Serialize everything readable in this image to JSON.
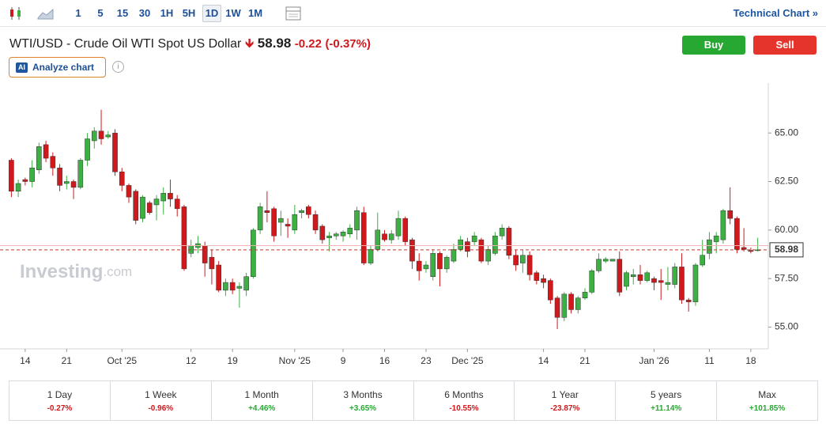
{
  "toolbar": {
    "intervals": [
      "1",
      "5",
      "15",
      "30",
      "1H",
      "5H",
      "1D",
      "1W",
      "1M"
    ],
    "link": "Technical Chart"
  },
  "header": {
    "title": "WTI/USD - Crude Oil WTI Spot US Dollar",
    "price": "58.98",
    "change": "-0.22",
    "change_pct": "(-0.37%)",
    "buy": "Buy",
    "sell": "Sell",
    "ai_badge": "AI",
    "analyze": "Analyze chart"
  },
  "chart_data": {
    "type": "candlestick",
    "watermark": {
      "brand": "Investing",
      "suffix": ".com"
    },
    "categories": [
      null,
      null,
      "14",
      null,
      null,
      null,
      null,
      null,
      "21",
      null,
      null,
      null,
      null,
      null,
      null,
      null,
      "Oct '25",
      null,
      null,
      null,
      null,
      null,
      null,
      null,
      null,
      null,
      "12",
      null,
      null,
      null,
      null,
      null,
      "19",
      null,
      null,
      null,
      null,
      null,
      null,
      null,
      null,
      "Nov '25",
      null,
      null,
      null,
      null,
      null,
      null,
      "9",
      null,
      null,
      null,
      null,
      null,
      "16",
      null,
      null,
      null,
      null,
      null,
      "23",
      null,
      null,
      null,
      null,
      null,
      "Dec '25",
      null,
      null,
      null,
      null,
      null,
      null,
      null,
      null,
      null,
      null,
      "14",
      null,
      null,
      null,
      null,
      null,
      "21",
      null,
      null,
      null,
      null,
      null,
      null,
      null,
      null,
      null,
      "Jan '26",
      null,
      null,
      null,
      null,
      null,
      null,
      null,
      "11",
      null,
      null,
      null,
      null,
      null,
      "18",
      null
    ],
    "open": [
      63.6,
      62.0,
      62.6,
      62.5,
      63.1,
      64.4,
      63.8,
      63.2,
      62.4,
      62.5,
      62.2,
      63.6,
      64.6,
      65.1,
      64.8,
      65.0,
      63.0,
      62.3,
      62.0,
      60.6,
      61.4,
      61.3,
      61.5,
      61.9,
      61.6,
      61.2,
      58.8,
      59.1,
      59.2,
      58.6,
      58.2,
      56.9,
      57.3,
      57.0,
      56.9,
      57.6,
      60.0,
      61.0,
      61.1,
      60.4,
      60.3,
      60.0,
      60.9,
      61.2,
      60.8,
      60.2,
      59.6,
      59.7,
      59.7,
      59.8,
      60.0,
      60.9,
      58.3,
      59.0,
      59.8,
      59.5,
      59.7,
      60.6,
      59.5,
      58.4,
      58.0,
      57.6,
      58.8,
      58.0,
      58.4,
      59.0,
      59.4,
      59.4,
      59.5,
      58.4,
      58.8,
      59.7,
      60.1,
      58.7,
      58.3,
      58.7,
      57.8,
      57.5,
      57.4,
      56.5,
      55.5,
      56.7,
      55.9,
      56.5,
      56.8,
      57.9,
      58.4,
      58.4,
      58.5,
      57.1,
      57.6,
      57.7,
      57.4,
      57.5,
      57.4,
      57.2,
      57.2,
      58.1,
      56.4,
      56.3,
      58.2,
      58.8,
      59.4,
      59.5,
      61.0,
      60.6,
      59.1,
      58.95,
      58.95
    ],
    "high": [
      63.7,
      62.6,
      62.7,
      63.6,
      64.5,
      64.6,
      64.0,
      63.4,
      62.8,
      62.6,
      63.7,
      65.0,
      65.3,
      66.2,
      65.1,
      65.2,
      63.2,
      62.4,
      62.1,
      61.8,
      61.5,
      61.8,
      62.2,
      62.6,
      61.8,
      61.3,
      59.5,
      59.7,
      59.4,
      59.0,
      58.4,
      57.5,
      57.5,
      57.3,
      57.8,
      60.1,
      61.4,
      62.0,
      61.2,
      61.0,
      60.6,
      61.3,
      61.1,
      61.3,
      61.0,
      60.3,
      59.9,
      59.9,
      60.0,
      60.3,
      61.2,
      61.2,
      59.2,
      60.9,
      60.0,
      60.0,
      61.0,
      60.7,
      59.6,
      58.8,
      58.4,
      59.0,
      58.9,
      58.7,
      59.3,
      59.7,
      59.6,
      59.9,
      59.6,
      59.2,
      59.9,
      60.3,
      60.2,
      59.0,
      59.0,
      58.9,
      57.9,
      57.7,
      57.5,
      56.6,
      56.8,
      56.8,
      56.6,
      57.0,
      58.0,
      58.8,
      58.6,
      58.5,
      58.9,
      57.9,
      58.0,
      58.2,
      57.9,
      57.6,
      58.0,
      58.1,
      58.3,
      58.8,
      56.5,
      58.3,
      59.5,
      59.9,
      59.9,
      61.1,
      62.2,
      60.7,
      60.1,
      59.1,
      59.6
    ],
    "low": [
      61.7,
      61.7,
      62.3,
      62.2,
      62.9,
      63.5,
      62.8,
      62.0,
      62.1,
      61.6,
      62.1,
      63.3,
      64.2,
      64.4,
      64.7,
      62.8,
      62.0,
      61.4,
      60.3,
      60.4,
      60.8,
      60.5,
      60.8,
      61.2,
      60.7,
      57.9,
      58.6,
      58.8,
      57.6,
      57.2,
      56.8,
      56.6,
      56.7,
      56.0,
      56.6,
      57.5,
      59.8,
      60.4,
      59.4,
      59.7,
      59.6,
      59.8,
      60.6,
      60.6,
      59.8,
      59.3,
      58.9,
      59.5,
      59.4,
      59.6,
      59.5,
      58.2,
      58.2,
      58.9,
      59.4,
      59.3,
      59.5,
      59.2,
      58.0,
      57.4,
      57.8,
      57.4,
      57.1,
      57.8,
      58.3,
      58.9,
      58.6,
      59.2,
      58.3,
      58.2,
      58.7,
      59.5,
      58.5,
      57.9,
      57.8,
      57.4,
      57.2,
      57.0,
      56.2,
      54.9,
      55.3,
      55.7,
      55.7,
      56.4,
      56.7,
      57.8,
      58.3,
      58.4,
      56.6,
      56.9,
      57.2,
      57.2,
      57.3,
      56.9,
      56.4,
      56.9,
      57.0,
      56.2,
      55.8,
      56.1,
      58.1,
      58.5,
      58.8,
      59.3,
      60.3,
      58.8,
      58.9,
      58.8,
      58.9
    ],
    "close": [
      62.0,
      62.4,
      62.5,
      63.2,
      64.3,
      63.7,
      63.2,
      62.3,
      62.5,
      62.2,
      63.6,
      64.7,
      65.1,
      64.7,
      64.9,
      63.0,
      62.3,
      61.7,
      60.5,
      61.7,
      60.9,
      61.6,
      61.9,
      61.6,
      61.1,
      58.0,
      59.2,
      59.3,
      58.3,
      58.0,
      56.9,
      57.3,
      56.9,
      57.1,
      57.6,
      60.0,
      61.2,
      60.9,
      59.7,
      60.6,
      60.2,
      60.8,
      61.0,
      60.8,
      60.0,
      59.5,
      59.7,
      59.8,
      59.9,
      60.1,
      61.0,
      58.3,
      59.0,
      60.0,
      59.5,
      59.8,
      60.6,
      59.4,
      58.4,
      57.9,
      58.2,
      58.8,
      58.0,
      58.6,
      59.0,
      59.5,
      58.9,
      59.7,
      58.4,
      59.0,
      59.7,
      60.1,
      58.7,
      58.2,
      58.7,
      57.7,
      57.4,
      57.3,
      56.4,
      55.5,
      56.7,
      55.9,
      56.5,
      56.8,
      57.9,
      58.5,
      58.5,
      58.5,
      56.8,
      57.8,
      57.7,
      57.4,
      57.8,
      57.3,
      57.3,
      57.3,
      58.1,
      56.4,
      56.3,
      58.2,
      58.7,
      59.5,
      59.7,
      61.0,
      60.6,
      59.0,
      59.0,
      58.9,
      58.98
    ],
    "up_color": "#3cb043",
    "down_color": "#d0191c",
    "ylim": [
      53.88,
      67.37
    ],
    "yticks": [
      {
        "value": 55,
        "label": "55.00"
      },
      {
        "value": 57.5,
        "label": "57.50"
      },
      {
        "value": 60,
        "label": "60.00"
      },
      {
        "value": 62.5,
        "label": "62.50"
      },
      {
        "value": 65,
        "label": "65.00"
      }
    ],
    "last_price": 58.98,
    "previous_close": 59.2
  },
  "performance": [
    {
      "period": "1 Day",
      "change": "-0.27%"
    },
    {
      "period": "1 Week",
      "change": "-0.96%"
    },
    {
      "period": "1 Month",
      "change": "+4.46%"
    },
    {
      "period": "3 Months",
      "change": "+3.65%"
    },
    {
      "period": "6 Months",
      "change": "-10.55%"
    },
    {
      "period": "1 Year",
      "change": "-23.87%"
    },
    {
      "period": "5 years",
      "change": "+11.14%"
    },
    {
      "period": "Max",
      "change": "+101.85%"
    }
  ]
}
